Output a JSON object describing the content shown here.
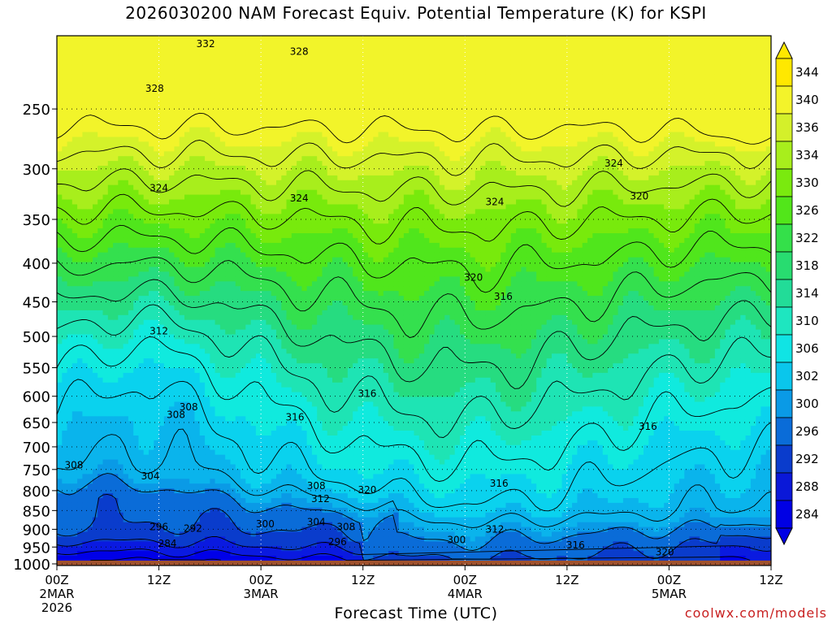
{
  "title": "2026030200 NAM Forecast Equiv. Potential Temperature (K) for KSPI",
  "xlabel": "Forecast Time (UTC)",
  "credit": "coolwx.com/models",
  "chart_data": {
    "type": "heatmap",
    "x_hours": [
      0,
      12,
      24,
      36,
      48,
      60,
      72,
      84
    ],
    "x_ticks": [
      {
        "label": "00Z",
        "sub": "2MAR",
        "sub2": "2026"
      },
      {
        "label": "12Z",
        "sub": "",
        "sub2": ""
      },
      {
        "label": "00Z",
        "sub": "3MAR",
        "sub2": ""
      },
      {
        "label": "12Z",
        "sub": "",
        "sub2": ""
      },
      {
        "label": "00Z",
        "sub": "4MAR",
        "sub2": ""
      },
      {
        "label": "12Z",
        "sub": "",
        "sub2": ""
      },
      {
        "label": "00Z",
        "sub": "5MAR",
        "sub2": ""
      },
      {
        "label": "12Z",
        "sub": "",
        "sub2": ""
      }
    ],
    "y_ticks": [
      250,
      300,
      350,
      400,
      450,
      500,
      550,
      600,
      650,
      700,
      750,
      800,
      850,
      900,
      950,
      1000
    ],
    "y_range_hpa": [
      200,
      1005
    ],
    "y_scale": "log-pressure",
    "ground_level_hpa": 990,
    "colorbar": {
      "labels": [
        344,
        340,
        336,
        334,
        330,
        326,
        322,
        318,
        314,
        310,
        306,
        302,
        300,
        296,
        292,
        288,
        284
      ],
      "colors": [
        "#ffe800",
        "#f3f32a",
        "#d4f02a",
        "#a8ee1c",
        "#7aea0e",
        "#52e61a",
        "#34e04a",
        "#28dc70",
        "#22dc98",
        "#1ee6c0",
        "#10e4e4",
        "#0ac6ec",
        "#0a9ae6",
        "#0a6cd8",
        "#0a3ccc",
        "#0a18d8",
        "#0000e4"
      ]
    },
    "contour_labels": [
      {
        "text": "332",
        "hour": 17.5,
        "p": 205
      },
      {
        "text": "328",
        "hour": 28.5,
        "p": 210
      },
      {
        "text": "328",
        "hour": 11.5,
        "p": 235
      },
      {
        "text": "324",
        "hour": 12,
        "p": 318
      },
      {
        "text": "324",
        "hour": 28.5,
        "p": 328
      },
      {
        "text": "324",
        "hour": 51.5,
        "p": 332
      },
      {
        "text": "324",
        "hour": 65.5,
        "p": 295
      },
      {
        "text": "320",
        "hour": 68.5,
        "p": 326
      },
      {
        "text": "320",
        "hour": 49,
        "p": 418
      },
      {
        "text": "316",
        "hour": 52.5,
        "p": 443
      },
      {
        "text": "316",
        "hour": 36.5,
        "p": 595
      },
      {
        "text": "316",
        "hour": 28,
        "p": 640
      },
      {
        "text": "316",
        "hour": 69.5,
        "p": 658
      },
      {
        "text": "316",
        "hour": 52,
        "p": 783
      },
      {
        "text": "316",
        "hour": 61,
        "p": 945
      },
      {
        "text": "312",
        "hour": 12,
        "p": 492
      },
      {
        "text": "312",
        "hour": 31,
        "p": 820
      },
      {
        "text": "312",
        "hour": 51.5,
        "p": 900
      },
      {
        "text": "308",
        "hour": 15.5,
        "p": 620
      },
      {
        "text": "308",
        "hour": 14,
        "p": 635
      },
      {
        "text": "308",
        "hour": 2,
        "p": 740
      },
      {
        "text": "308",
        "hour": 30.5,
        "p": 788
      },
      {
        "text": "308",
        "hour": 34,
        "p": 893
      },
      {
        "text": "304",
        "hour": 11,
        "p": 765
      },
      {
        "text": "304",
        "hour": 30.5,
        "p": 880
      },
      {
        "text": "320",
        "hour": 36.5,
        "p": 798
      },
      {
        "text": "320",
        "hour": 71.5,
        "p": 965
      },
      {
        "text": "300",
        "hour": 24.5,
        "p": 886
      },
      {
        "text": "300",
        "hour": 47,
        "p": 930
      },
      {
        "text": "296",
        "hour": 12,
        "p": 893
      },
      {
        "text": "296",
        "hour": 33,
        "p": 935
      },
      {
        "text": "292",
        "hour": 16,
        "p": 898
      },
      {
        "text": "284",
        "hour": 13,
        "p": 940
      }
    ]
  }
}
